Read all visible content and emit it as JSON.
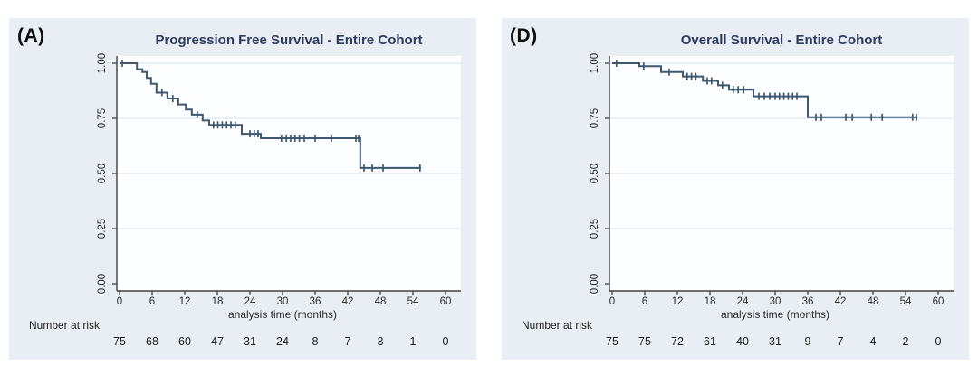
{
  "colors": {
    "page_bg": "#ffffff",
    "panel_bg": "#e9eef4",
    "plot_bg": "#fdfeff",
    "gridline": "#dde8f2",
    "axis": "#404040",
    "tick_text": "#2a2a2a",
    "risk_text": "#1c1c1c",
    "title_text": "#2d3a5f",
    "curve": "#3e5871"
  },
  "chart_data": [
    {
      "type": "line",
      "subtype": "kaplan_meier_step",
      "panel_label": "(A)",
      "title": "Progression Free Survival - Entire Cohort",
      "xlabel": "analysis time (months)",
      "ylabel": "",
      "xlim": [
        0,
        60
      ],
      "ylim": [
        0.0,
        1.0
      ],
      "grid": "horizontal",
      "legend": "none",
      "x_ticks": [
        0,
        6,
        12,
        18,
        24,
        30,
        36,
        42,
        48,
        54,
        60
      ],
      "y_ticks": [
        {
          "v": 0.0,
          "label": "0.00"
        },
        {
          "v": 0.25,
          "label": "0.25"
        },
        {
          "v": 0.5,
          "label": "0.50"
        },
        {
          "v": 0.75,
          "label": "0.75"
        },
        {
          "v": 1.0,
          "label": "1.00"
        }
      ],
      "series": [
        {
          "name": "Entire Cohort",
          "color": "#3e5871",
          "steps": [
            [
              0,
              1.0
            ],
            [
              3.2,
              0.973
            ],
            [
              4.2,
              0.96
            ],
            [
              5.0,
              0.933
            ],
            [
              5.8,
              0.907
            ],
            [
              6.8,
              0.867
            ],
            [
              8.8,
              0.84
            ],
            [
              10.8,
              0.813
            ],
            [
              12.2,
              0.79
            ],
            [
              13.3,
              0.767
            ],
            [
              15.3,
              0.74
            ],
            [
              16.5,
              0.72
            ],
            [
              22.5,
              0.68
            ],
            [
              26.0,
              0.66
            ],
            [
              44.3,
              0.525
            ]
          ],
          "end_time": 55.5,
          "censors": [
            [
              0.5,
              1.0
            ],
            [
              7.8,
              0.867
            ],
            [
              9.8,
              0.84
            ],
            [
              14.3,
              0.767
            ],
            [
              17.3,
              0.72
            ],
            [
              18.1,
              0.72
            ],
            [
              18.9,
              0.72
            ],
            [
              19.7,
              0.72
            ],
            [
              20.5,
              0.72
            ],
            [
              21.3,
              0.72
            ],
            [
              24.0,
              0.68
            ],
            [
              24.8,
              0.68
            ],
            [
              25.5,
              0.68
            ],
            [
              29.8,
              0.66
            ],
            [
              30.7,
              0.66
            ],
            [
              31.5,
              0.66
            ],
            [
              32.3,
              0.66
            ],
            [
              33.1,
              0.66
            ],
            [
              34.0,
              0.66
            ],
            [
              36.0,
              0.66
            ],
            [
              39.0,
              0.66
            ],
            [
              43.5,
              0.66
            ],
            [
              44.0,
              0.66
            ],
            [
              45.0,
              0.525
            ],
            [
              46.5,
              0.525
            ],
            [
              48.5,
              0.525
            ],
            [
              55.3,
              0.525
            ]
          ]
        }
      ],
      "number_at_risk": {
        "label": "Number at risk",
        "times": [
          0,
          6,
          12,
          18,
          24,
          30,
          36,
          42,
          48,
          54,
          60
        ],
        "counts": [
          "75",
          "68",
          "60",
          "47",
          "31",
          "24",
          "8",
          "7",
          "3",
          "1",
          "0"
        ]
      }
    },
    {
      "type": "line",
      "subtype": "kaplan_meier_step",
      "panel_label": "(D)",
      "title": "Overall Survival - Entire Cohort",
      "xlabel": "analysis time (months)",
      "ylabel": "",
      "xlim": [
        0,
        60
      ],
      "ylim": [
        0.0,
        1.0
      ],
      "grid": "horizontal",
      "legend": "none",
      "x_ticks": [
        0,
        6,
        12,
        18,
        24,
        30,
        36,
        42,
        48,
        54,
        60
      ],
      "y_ticks": [
        {
          "v": 0.0,
          "label": "0.00"
        },
        {
          "v": 0.25,
          "label": "0.25"
        },
        {
          "v": 0.5,
          "label": "0.50"
        },
        {
          "v": 0.75,
          "label": "0.75"
        },
        {
          "v": 1.0,
          "label": "1.00"
        }
      ],
      "series": [
        {
          "name": "Entire Cohort",
          "color": "#3e5871",
          "steps": [
            [
              0,
              1.0
            ],
            [
              5.0,
              0.987
            ],
            [
              9.0,
              0.96
            ],
            [
              13.0,
              0.94
            ],
            [
              16.7,
              0.92
            ],
            [
              19.5,
              0.9
            ],
            [
              21.5,
              0.88
            ],
            [
              26.0,
              0.85
            ],
            [
              36.0,
              0.755
            ]
          ],
          "end_time": 56.2,
          "censors": [
            [
              0.8,
              1.0
            ],
            [
              5.8,
              0.987
            ],
            [
              10.5,
              0.96
            ],
            [
              13.8,
              0.94
            ],
            [
              14.6,
              0.94
            ],
            [
              15.4,
              0.94
            ],
            [
              17.5,
              0.92
            ],
            [
              18.3,
              0.92
            ],
            [
              20.3,
              0.9
            ],
            [
              22.3,
              0.88
            ],
            [
              23.2,
              0.88
            ],
            [
              24.2,
              0.88
            ],
            [
              27.0,
              0.85
            ],
            [
              28.0,
              0.85
            ],
            [
              29.0,
              0.85
            ],
            [
              30.0,
              0.85
            ],
            [
              30.8,
              0.85
            ],
            [
              31.6,
              0.85
            ],
            [
              32.4,
              0.85
            ],
            [
              33.2,
              0.85
            ],
            [
              34.0,
              0.85
            ],
            [
              37.5,
              0.755
            ],
            [
              38.5,
              0.755
            ],
            [
              43.0,
              0.755
            ],
            [
              44.2,
              0.755
            ],
            [
              47.7,
              0.755
            ],
            [
              49.7,
              0.755
            ],
            [
              55.3,
              0.755
            ],
            [
              56.0,
              0.755
            ]
          ]
        }
      ],
      "number_at_risk": {
        "label": "Number at risk",
        "times": [
          0,
          6,
          12,
          18,
          24,
          30,
          36,
          42,
          48,
          54,
          60
        ],
        "counts": [
          "75",
          "75",
          "72",
          "61",
          "40",
          "31",
          "9",
          "7",
          "4",
          "2",
          "0"
        ]
      }
    }
  ]
}
